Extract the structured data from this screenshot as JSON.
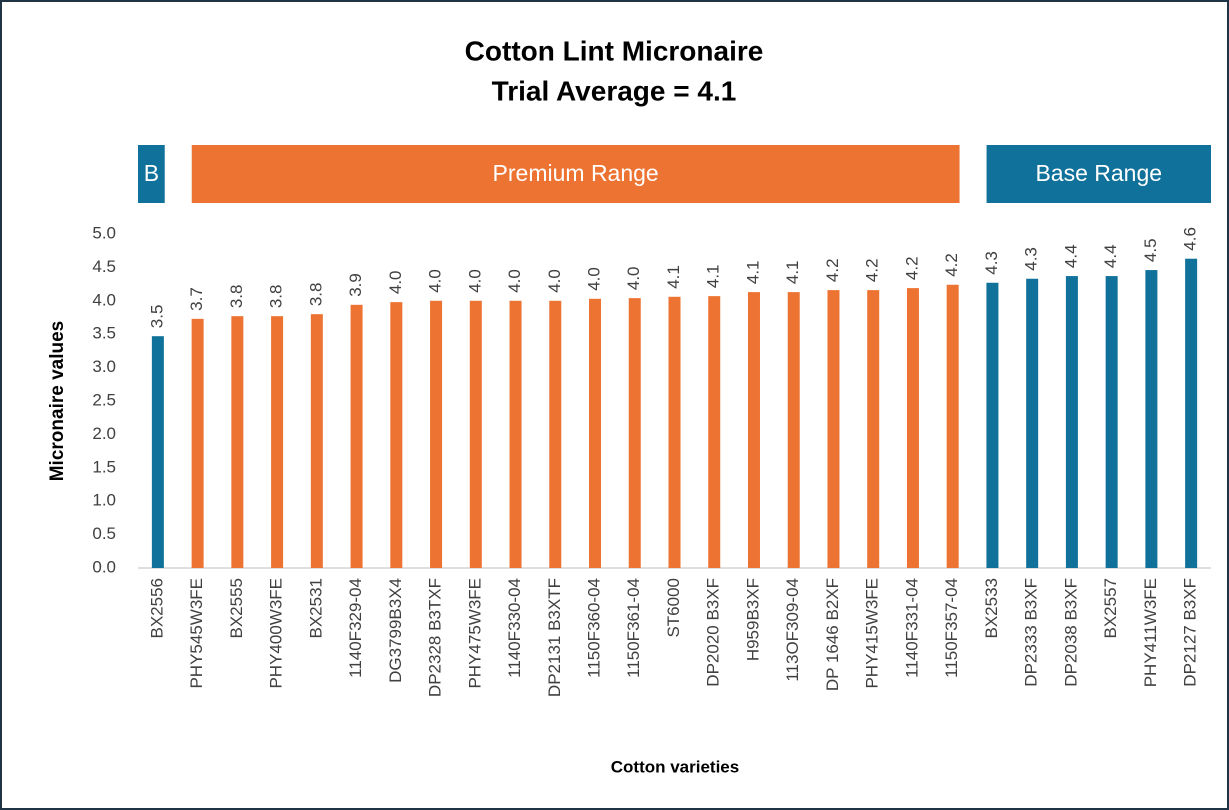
{
  "chart_data": {
    "type": "bar",
    "title": "Cotton Lint Micronaire",
    "subtitle": "Trial Average = 4.1",
    "x_label": "Cotton varieties",
    "y_label": "Micronaire values",
    "categories": [
      "BX2556",
      "PHY545W3FE",
      "BX2555",
      "PHY400W3FE",
      "BX2531",
      "1140F329-04",
      "DG3799B3X4",
      "DP2328 B3TXF",
      "PHY475W3FE",
      "1140F330-04",
      "DP2131 B3XTF",
      "1150F360-04",
      "1150F361-04",
      "ST6000",
      "DP2020 B3XF",
      "H959B3XF",
      "113OF309-04",
      "DP 1646 B2XF",
      "PHY415W3FE",
      "1140F331-04",
      "1150F357-04",
      "BX2533",
      "DP2333 B3XF",
      "DP2038 B3XF",
      "BX2557",
      "PHY411W3FE",
      "DP2127 B3XF"
    ],
    "values": [
      3.47,
      3.73,
      3.77,
      3.77,
      3.8,
      3.94,
      3.98,
      4.0,
      4.0,
      4.0,
      4.0,
      4.03,
      4.04,
      4.06,
      4.07,
      4.13,
      4.13,
      4.16,
      4.16,
      4.19,
      4.24,
      4.27,
      4.33,
      4.37,
      4.37,
      4.46,
      4.63
    ],
    "value_labels": [
      "3.5",
      "3.7",
      "3.8",
      "3.8",
      "3.8",
      "3.9",
      "4.0",
      "4.0",
      "4.0",
      "4.0",
      "4.0",
      "4.0",
      "4.0",
      "4.1",
      "4.1",
      "4.1",
      "4.1",
      "4.2",
      "4.2",
      "4.2",
      "4.2",
      "4.3",
      "4.3",
      "4.4",
      "4.4",
      "4.5",
      "4.6"
    ],
    "colors": [
      "#10719a",
      "#ed7332",
      "#ed7332",
      "#ed7332",
      "#ed7332",
      "#ed7332",
      "#ed7332",
      "#ed7332",
      "#ed7332",
      "#ed7332",
      "#ed7332",
      "#ed7332",
      "#ed7332",
      "#ed7332",
      "#ed7332",
      "#ed7332",
      "#ed7332",
      "#ed7332",
      "#ed7332",
      "#ed7332",
      "#ed7332",
      "#10719a",
      "#10719a",
      "#10719a",
      "#10719a",
      "#10719a",
      "#10719a"
    ],
    "range_bands": [
      {
        "label": "B",
        "color": "#10719a"
      },
      {
        "label": "Premium Range",
        "color": "#ed7332"
      },
      {
        "label": "Base Range",
        "color": "#10719a"
      }
    ],
    "ylim": [
      0,
      5
    ],
    "yticks": [
      {
        "value": 0,
        "label": "0.0"
      },
      0.5,
      {
        "value": 1,
        "label": "1.0"
      },
      1.5,
      {
        "value": 2,
        "label": "2.0"
      },
      2.5,
      {
        "value": 3,
        "label": "3.0"
      },
      3.5,
      {
        "value": 4,
        "label": "4.0"
      },
      4.5,
      {
        "value": 5,
        "label": "5.0"
      }
    ],
    "grid": false
  }
}
